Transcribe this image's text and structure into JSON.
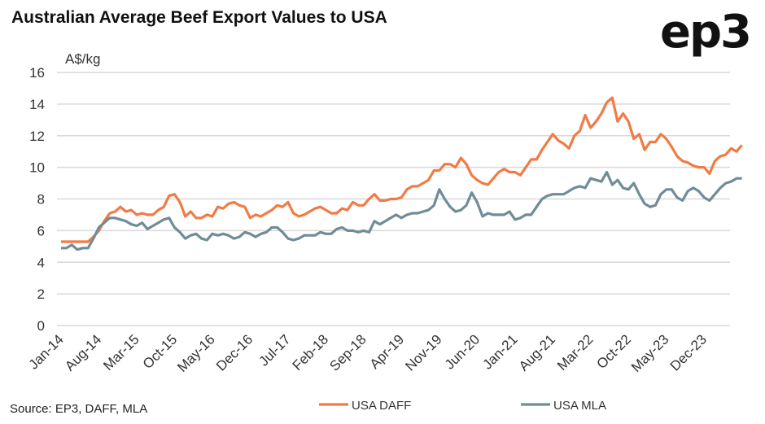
{
  "title": "Australian Average Beef Export Values to USA",
  "logo": "ep3",
  "source": "Source: EP3, DAFF, MLA",
  "colors": {
    "daff": "#F27B45",
    "mla": "#6F8C97",
    "grid": "#D9D9D9"
  },
  "chart_data": {
    "type": "line",
    "title": "Australian Average Beef Export Values to USA",
    "ylabel": "A$/kg",
    "xlabel": "",
    "ylim": [
      0,
      16
    ],
    "yticks": [
      0,
      2,
      4,
      6,
      8,
      10,
      12,
      14,
      16
    ],
    "grid": true,
    "legend": "bottom",
    "x_start": "Jan-14",
    "x_frequency": "monthly",
    "xtick_labels": [
      "Jan-14",
      "Aug-14",
      "Mar-15",
      "Oct-15",
      "May-16",
      "Dec-16",
      "Jul-17",
      "Feb-18",
      "Sep-18",
      "Apr-19",
      "Nov-19",
      "Jun-20",
      "Jan-21",
      "Aug-21",
      "Mar-22",
      "Oct-22",
      "May-23",
      "Dec-23"
    ],
    "xtick_interval_months": 7,
    "series": [
      {
        "name": "USA DAFF",
        "color": "#F27B45",
        "values": [
          5.3,
          5.3,
          5.3,
          5.3,
          5.3,
          5.3,
          5.6,
          6.0,
          6.6,
          7.1,
          7.2,
          7.5,
          7.2,
          7.3,
          7.0,
          7.1,
          7.0,
          7.0,
          7.3,
          7.5,
          8.2,
          8.3,
          7.8,
          6.9,
          7.2,
          6.8,
          6.8,
          7.0,
          6.9,
          7.5,
          7.4,
          7.7,
          7.8,
          7.6,
          7.5,
          6.8,
          7.0,
          6.9,
          7.1,
          7.3,
          7.6,
          7.5,
          7.8,
          7.1,
          6.9,
          7.0,
          7.2,
          7.4,
          7.5,
          7.3,
          7.1,
          7.1,
          7.4,
          7.3,
          7.8,
          7.6,
          7.6,
          8.0,
          8.3,
          7.9,
          7.9,
          8.0,
          8.0,
          8.1,
          8.6,
          8.8,
          8.8,
          9.0,
          9.2,
          9.8,
          9.8,
          10.2,
          10.2,
          10.0,
          10.6,
          10.2,
          9.5,
          9.2,
          9.0,
          8.9,
          9.3,
          9.7,
          9.9,
          9.7,
          9.7,
          9.5,
          10.0,
          10.5,
          10.5,
          11.1,
          11.6,
          12.1,
          11.7,
          11.5,
          11.2,
          12.0,
          12.3,
          13.3,
          12.5,
          12.9,
          13.4,
          14.1,
          14.4,
          12.9,
          13.4,
          12.9,
          11.8,
          12.1,
          11.1,
          11.6,
          11.6,
          12.1,
          11.8,
          11.3,
          10.7,
          10.4,
          10.3,
          10.1,
          10.0,
          10.0,
          9.6,
          10.4,
          10.7,
          10.8,
          11.2,
          11.0,
          11.4
        ]
      },
      {
        "name": "USA MLA",
        "color": "#6F8C97",
        "values": [
          4.9,
          4.9,
          5.1,
          4.8,
          4.9,
          4.9,
          5.5,
          6.2,
          6.5,
          6.8,
          6.8,
          6.7,
          6.6,
          6.4,
          6.3,
          6.5,
          6.1,
          6.3,
          6.5,
          6.7,
          6.8,
          6.2,
          5.9,
          5.5,
          5.7,
          5.8,
          5.5,
          5.4,
          5.8,
          5.7,
          5.8,
          5.7,
          5.5,
          5.6,
          5.9,
          5.8,
          5.6,
          5.8,
          5.9,
          6.2,
          6.2,
          5.9,
          5.5,
          5.4,
          5.5,
          5.7,
          5.7,
          5.7,
          5.9,
          5.8,
          5.8,
          6.1,
          6.2,
          6.0,
          6.0,
          5.9,
          6.0,
          5.9,
          6.6,
          6.4,
          6.6,
          6.8,
          7.0,
          6.8,
          7.0,
          7.1,
          7.1,
          7.2,
          7.3,
          7.6,
          8.6,
          8.0,
          7.5,
          7.2,
          7.3,
          7.6,
          8.4,
          7.8,
          6.9,
          7.1,
          7.0,
          7.0,
          7.0,
          7.2,
          6.7,
          6.8,
          7.0,
          7.0,
          7.5,
          8.0,
          8.2,
          8.3,
          8.3,
          8.3,
          8.5,
          8.7,
          8.8,
          8.7,
          9.3,
          9.2,
          9.1,
          9.7,
          8.9,
          9.2,
          8.7,
          8.6,
          9.0,
          8.3,
          7.7,
          7.5,
          7.6,
          8.3,
          8.6,
          8.6,
          8.1,
          7.9,
          8.5,
          8.7,
          8.5,
          8.1,
          7.9,
          8.3,
          8.7,
          9.0,
          9.1,
          9.3,
          9.3
        ]
      }
    ]
  }
}
